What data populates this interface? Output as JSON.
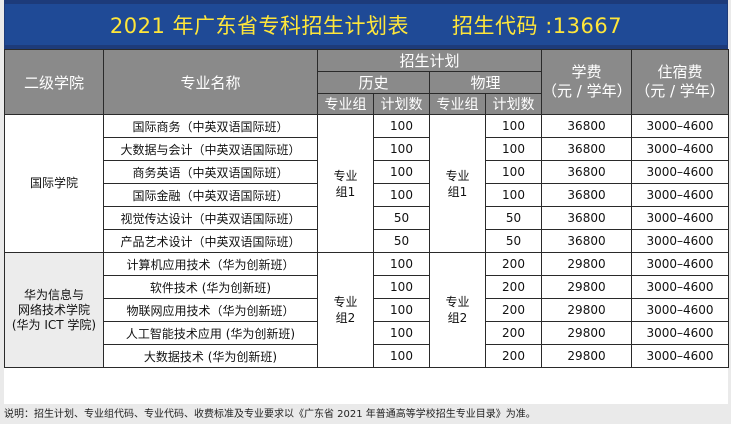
{
  "title": "2021 年广东省专科招生计划表　　招生代码 :13667",
  "headers": {
    "college": "二级学院",
    "major": "专业名称",
    "plan": "招生计划",
    "history": "历史",
    "physics": "物理",
    "group": "专业组",
    "count": "计划数",
    "tuition_l1": "学费",
    "tuition_l2": "（元 / 学年）",
    "lodging_l1": "住宿费",
    "lodging_l2": "（元 / 学年）"
  },
  "sections": [
    {
      "college": "国际学院",
      "hist_group": "专业组1",
      "phys_group": "专业组1",
      "rows": [
        {
          "major": "国际商务（中英双语国际班）",
          "hist": "100",
          "phys": "100",
          "tuition": "36800",
          "lodging": "3000–4600"
        },
        {
          "major": "大数据与会计（中英双语国际班）",
          "hist": "100",
          "phys": "100",
          "tuition": "36800",
          "lodging": "3000–4600"
        },
        {
          "major": "商务英语（中英双语国际班）",
          "hist": "100",
          "phys": "100",
          "tuition": "36800",
          "lodging": "3000–4600"
        },
        {
          "major": "国际金融（中英双语国际班）",
          "hist": "100",
          "phys": "100",
          "tuition": "36800",
          "lodging": "3000–4600"
        },
        {
          "major": "视觉传达设计（中英双语国际班）",
          "hist": "50",
          "phys": "50",
          "tuition": "36800",
          "lodging": "3000–4600"
        },
        {
          "major": "产品艺术设计（中英双语国际班）",
          "hist": "50",
          "phys": "50",
          "tuition": "36800",
          "lodging": "3000–4600"
        }
      ]
    },
    {
      "college": "华为信息与网络技术学院(华为 ICT 学院)",
      "hist_group": "专业组2",
      "phys_group": "专业组2",
      "rows": [
        {
          "major": "计算机应用技术（华为创新班）",
          "hist": "100",
          "phys": "200",
          "tuition": "29800",
          "lodging": "3000–4600"
        },
        {
          "major": "软件技术 (华为创新班)",
          "hist": "100",
          "phys": "200",
          "tuition": "29800",
          "lodging": "3000–4600"
        },
        {
          "major": "物联网应用技术（华为创新班）",
          "hist": "100",
          "phys": "200",
          "tuition": "29800",
          "lodging": "3000–4600"
        },
        {
          "major": "人工智能技术应用 (华为创新班)",
          "hist": "100",
          "phys": "200",
          "tuition": "29800",
          "lodging": "3000–4600"
        },
        {
          "major": "大数据技术 (华为创新班)",
          "hist": "100",
          "phys": "200",
          "tuition": "29800",
          "lodging": "3000–4600"
        }
      ]
    }
  ],
  "note": "说明：招生计划、专业组代码、专业代码、收费标准及专业要求以《广东省 2021 年普通高等学校招生专业目录》为准。"
}
